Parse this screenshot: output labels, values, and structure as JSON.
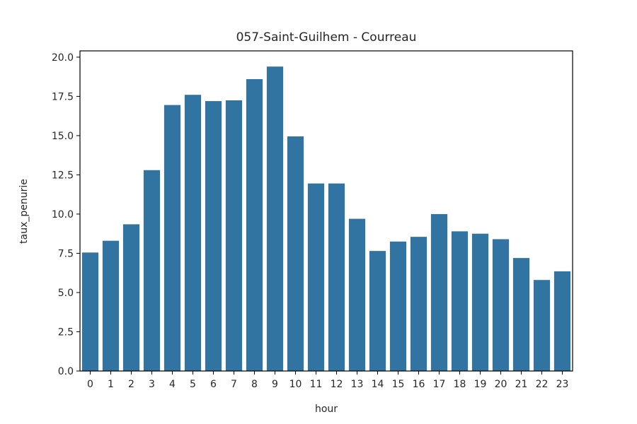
{
  "chart_data": {
    "type": "bar",
    "title": "057-Saint-Guilhem - Courreau",
    "xlabel": "hour",
    "ylabel": "taux_penurie",
    "categories": [
      "0",
      "1",
      "2",
      "3",
      "4",
      "5",
      "6",
      "7",
      "8",
      "9",
      "10",
      "11",
      "12",
      "13",
      "14",
      "15",
      "16",
      "17",
      "18",
      "19",
      "20",
      "21",
      "22",
      "23"
    ],
    "values": [
      7.55,
      8.3,
      9.35,
      12.8,
      16.95,
      17.6,
      17.2,
      17.25,
      18.6,
      19.4,
      14.95,
      11.95,
      11.95,
      9.7,
      7.65,
      8.25,
      8.55,
      10.0,
      8.9,
      8.75,
      8.4,
      7.2,
      5.8,
      6.35
    ],
    "ylim": [
      0,
      20.4
    ],
    "yticks": [
      "0.0",
      "2.5",
      "5.0",
      "7.5",
      "10.0",
      "12.5",
      "15.0",
      "17.5",
      "20.0"
    ],
    "bar_color": "#3274a1",
    "grid": false,
    "legend": "none"
  }
}
